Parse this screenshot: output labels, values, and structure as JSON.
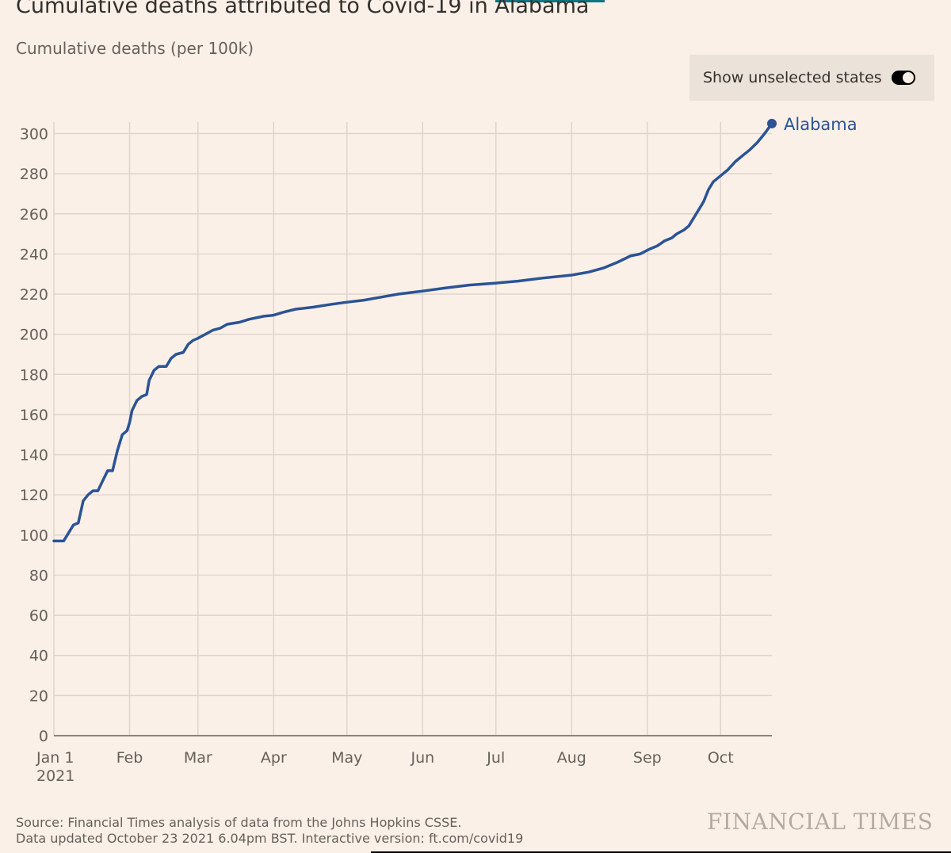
{
  "title": "Cumulative deaths attributed to Covid-19 in Alabama",
  "subtitle": "Cumulative deaths (per 100k)",
  "toggle": {
    "label": "Show unselected states",
    "on": true
  },
  "footer": {
    "source": "Source: Financial Times analysis of data from the Johns Hopkins CSSE.",
    "updated": "Data updated October 23 2021 6.04pm BST. Interactive version: ft.com/covid19"
  },
  "brand": "FINANCIAL TIMES",
  "colors": {
    "background": "#FBF0E7",
    "line": "#2B5395",
    "grid": "#DDD5CD",
    "text": "#33302E",
    "muted": "#66605C"
  },
  "chart_data": {
    "type": "line",
    "title": "Cumulative deaths attributed to Covid-19 in Alabama",
    "ylabel": "Cumulative deaths (per 100k)",
    "ylim": [
      0,
      300
    ],
    "xlim": [
      "2021-01-01",
      "2021-10-22"
    ],
    "grid": true,
    "y_ticks": [
      "0",
      "20",
      "40",
      "60",
      "80",
      "100",
      "120",
      "140",
      "160",
      "180",
      "200",
      "220",
      "240",
      "260",
      "280",
      "300"
    ],
    "x_ticks": [
      {
        "date": "2021-01-01",
        "label": "Jan 1",
        "sublabel": "2021"
      },
      {
        "date": "2021-02-01",
        "label": "Feb"
      },
      {
        "date": "2021-03-01",
        "label": "Mar"
      },
      {
        "date": "2021-04-01",
        "label": "Apr"
      },
      {
        "date": "2021-05-01",
        "label": "May"
      },
      {
        "date": "2021-06-01",
        "label": "Jun"
      },
      {
        "date": "2021-07-01",
        "label": "Jul"
      },
      {
        "date": "2021-08-01",
        "label": "Aug"
      },
      {
        "date": "2021-09-01",
        "label": "Sep"
      },
      {
        "date": "2021-10-01",
        "label": "Oct"
      }
    ],
    "series": [
      {
        "name": "Alabama",
        "color": "#2B5395",
        "points": [
          [
            "2021-01-01",
            97
          ],
          [
            "2021-01-05",
            97
          ],
          [
            "2021-01-07",
            101
          ],
          [
            "2021-01-09",
            105
          ],
          [
            "2021-01-11",
            106
          ],
          [
            "2021-01-13",
            117
          ],
          [
            "2021-01-15",
            120
          ],
          [
            "2021-01-17",
            122
          ],
          [
            "2021-01-19",
            122
          ],
          [
            "2021-01-21",
            127
          ],
          [
            "2021-01-23",
            132
          ],
          [
            "2021-01-25",
            132
          ],
          [
            "2021-01-27",
            142
          ],
          [
            "2021-01-29",
            150
          ],
          [
            "2021-01-31",
            152
          ],
          [
            "2021-02-01",
            156
          ],
          [
            "2021-02-02",
            162
          ],
          [
            "2021-02-04",
            167
          ],
          [
            "2021-02-06",
            169
          ],
          [
            "2021-02-08",
            170
          ],
          [
            "2021-02-09",
            177
          ],
          [
            "2021-02-11",
            182
          ],
          [
            "2021-02-13",
            184
          ],
          [
            "2021-02-16",
            184
          ],
          [
            "2021-02-18",
            188
          ],
          [
            "2021-02-20",
            190
          ],
          [
            "2021-02-23",
            191
          ],
          [
            "2021-02-25",
            195
          ],
          [
            "2021-02-27",
            197
          ],
          [
            "2021-03-01",
            198
          ],
          [
            "2021-03-04",
            200
          ],
          [
            "2021-03-07",
            202
          ],
          [
            "2021-03-10",
            203
          ],
          [
            "2021-03-13",
            205
          ],
          [
            "2021-03-18",
            206
          ],
          [
            "2021-03-22",
            207.5
          ],
          [
            "2021-03-28",
            209
          ],
          [
            "2021-04-01",
            209.5
          ],
          [
            "2021-04-05",
            211
          ],
          [
            "2021-04-10",
            212.5
          ],
          [
            "2021-04-17",
            213.5
          ],
          [
            "2021-04-25",
            215
          ],
          [
            "2021-05-01",
            216
          ],
          [
            "2021-05-08",
            217
          ],
          [
            "2021-05-15",
            218.5
          ],
          [
            "2021-05-22",
            220
          ],
          [
            "2021-06-01",
            221.5
          ],
          [
            "2021-06-10",
            223
          ],
          [
            "2021-06-20",
            224.5
          ],
          [
            "2021-07-01",
            225.5
          ],
          [
            "2021-07-10",
            226.5
          ],
          [
            "2021-07-20",
            228
          ],
          [
            "2021-08-01",
            229.5
          ],
          [
            "2021-08-08",
            231
          ],
          [
            "2021-08-14",
            233
          ],
          [
            "2021-08-20",
            236
          ],
          [
            "2021-08-25",
            239
          ],
          [
            "2021-08-29",
            240
          ],
          [
            "2021-09-02",
            242.5
          ],
          [
            "2021-09-05",
            244
          ],
          [
            "2021-09-08",
            246.5
          ],
          [
            "2021-09-11",
            248
          ],
          [
            "2021-09-13",
            250
          ],
          [
            "2021-09-16",
            252
          ],
          [
            "2021-09-18",
            254
          ],
          [
            "2021-09-20",
            258
          ],
          [
            "2021-09-22",
            262
          ],
          [
            "2021-09-24",
            266
          ],
          [
            "2021-09-26",
            272
          ],
          [
            "2021-09-28",
            276
          ],
          [
            "2021-10-01",
            279
          ],
          [
            "2021-10-04",
            282
          ],
          [
            "2021-10-07",
            286
          ],
          [
            "2021-10-10",
            289
          ],
          [
            "2021-10-13",
            292
          ],
          [
            "2021-10-16",
            295.5
          ],
          [
            "2021-10-19",
            300
          ],
          [
            "2021-10-22",
            305
          ]
        ]
      }
    ]
  }
}
